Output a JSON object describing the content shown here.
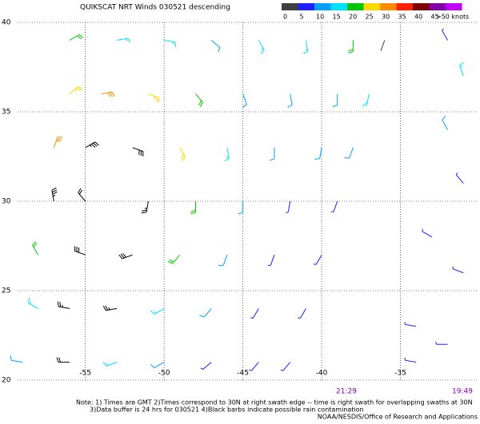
{
  "header": {
    "title": "QUIKSCAT NRT Winds 030521 descending"
  },
  "legend": {
    "items": [
      {
        "label": "0",
        "color": "#404040"
      },
      {
        "label": "5",
        "color": "#1e1eff"
      },
      {
        "label": "10",
        "color": "#00a0ff"
      },
      {
        "label": "15",
        "color": "#00e0ff"
      },
      {
        "label": "20",
        "color": "#00c800"
      },
      {
        "label": "25",
        "color": "#ffd800"
      },
      {
        "label": "30",
        "color": "#ff8c00"
      },
      {
        "label": "35",
        "color": "#ff2000"
      },
      {
        "label": "40",
        "color": "#800000"
      },
      {
        "label": "45",
        "color": "#8000a0"
      },
      {
        "label": ">50 knots",
        "color": "#c000ff"
      }
    ]
  },
  "map": {
    "lat_ticks": [
      40,
      35,
      30,
      25,
      20
    ],
    "lon_ticks": [
      -55,
      -50,
      -45,
      -40,
      -35
    ],
    "latlim": [
      20,
      40
    ],
    "lonlim": [
      -59.3,
      -30.1
    ],
    "rain_color": "#000000",
    "barbs": [
      [
        -56,
        39,
        60,
        20,
        0
      ],
      [
        -53,
        39,
        80,
        15,
        0
      ],
      [
        -50,
        39,
        100,
        15,
        0
      ],
      [
        -47,
        39,
        130,
        10,
        0
      ],
      [
        -44,
        39,
        150,
        15,
        0
      ],
      [
        -41,
        39,
        170,
        15,
        0
      ],
      [
        -38,
        39,
        180,
        20,
        0
      ],
      [
        -36,
        39,
        200,
        3,
        0
      ],
      [
        -56,
        36,
        50,
        25,
        0
      ],
      [
        -54,
        36,
        80,
        30,
        0
      ],
      [
        -51,
        36,
        110,
        25,
        0
      ],
      [
        -48,
        36,
        140,
        20,
        0
      ],
      [
        -45,
        36,
        160,
        10,
        0
      ],
      [
        -42,
        36,
        170,
        10,
        0
      ],
      [
        -39,
        36,
        180,
        10,
        0
      ],
      [
        -37,
        36,
        190,
        15,
        0
      ],
      [
        -57,
        33,
        20,
        30,
        0
      ],
      [
        -55,
        33,
        60,
        35,
        1
      ],
      [
        -52,
        33,
        110,
        30,
        1
      ],
      [
        -49,
        33,
        150,
        25,
        0
      ],
      [
        -46,
        33,
        170,
        15,
        0
      ],
      [
        -43,
        33,
        180,
        10,
        0
      ],
      [
        -40,
        33,
        190,
        10,
        0
      ],
      [
        -38,
        33,
        200,
        10,
        0
      ],
      [
        -57,
        30,
        350,
        35,
        1
      ],
      [
        -55,
        30,
        320,
        20,
        1
      ],
      [
        -51,
        30,
        190,
        25,
        1
      ],
      [
        -48,
        30,
        180,
        20,
        0
      ],
      [
        -45,
        30,
        180,
        10,
        0
      ],
      [
        -42,
        30,
        190,
        8,
        0
      ],
      [
        -39,
        30,
        200,
        8,
        0
      ],
      [
        -58,
        27,
        330,
        20,
        0
      ],
      [
        -55,
        27,
        290,
        30,
        1
      ],
      [
        -52,
        27,
        250,
        30,
        1
      ],
      [
        -49,
        27,
        220,
        20,
        0
      ],
      [
        -46,
        27,
        200,
        10,
        0
      ],
      [
        -43,
        27,
        200,
        8,
        0
      ],
      [
        -40,
        27,
        210,
        8,
        0
      ],
      [
        -58,
        24,
        300,
        15,
        0
      ],
      [
        -56,
        24,
        280,
        25,
        1
      ],
      [
        -53,
        24,
        260,
        25,
        1
      ],
      [
        -50,
        24,
        240,
        15,
        0
      ],
      [
        -47,
        24,
        220,
        10,
        0
      ],
      [
        -44,
        24,
        210,
        8,
        0
      ],
      [
        -41,
        24,
        210,
        8,
        0
      ],
      [
        -59,
        21,
        280,
        10,
        0
      ],
      [
        -56,
        21,
        270,
        20,
        1
      ],
      [
        -53,
        21,
        250,
        15,
        0
      ],
      [
        -50,
        21,
        240,
        10,
        0
      ],
      [
        -47,
        21,
        230,
        8,
        0
      ],
      [
        -44,
        21,
        220,
        8,
        0
      ],
      [
        -42,
        21,
        220,
        8,
        0
      ],
      [
        -32,
        39,
        330,
        5,
        0
      ],
      [
        -31,
        37,
        340,
        15,
        0
      ],
      [
        -32,
        34,
        330,
        10,
        0
      ],
      [
        -31,
        31,
        320,
        8,
        0
      ],
      [
        -33,
        28,
        300,
        8,
        0
      ],
      [
        -31,
        26,
        290,
        8,
        0
      ],
      [
        -34,
        23,
        280,
        8,
        0
      ],
      [
        -32,
        22,
        270,
        8,
        0
      ],
      [
        -34,
        21,
        280,
        8,
        0
      ]
    ]
  },
  "swath_times": [
    "21:29",
    "19:49"
  ],
  "footer": {
    "notes": [
      "Note: 1) Times are GMT 2)Times correspond to 30N at right swath edge -- time is right swath for overlapping swaths at 30N",
      "3)Data buffer is 24 hrs for 030521 4)Black barbs indicate possible rain contamination",
      "NOAA/NESDIS/Office of Research and Applications"
    ]
  }
}
